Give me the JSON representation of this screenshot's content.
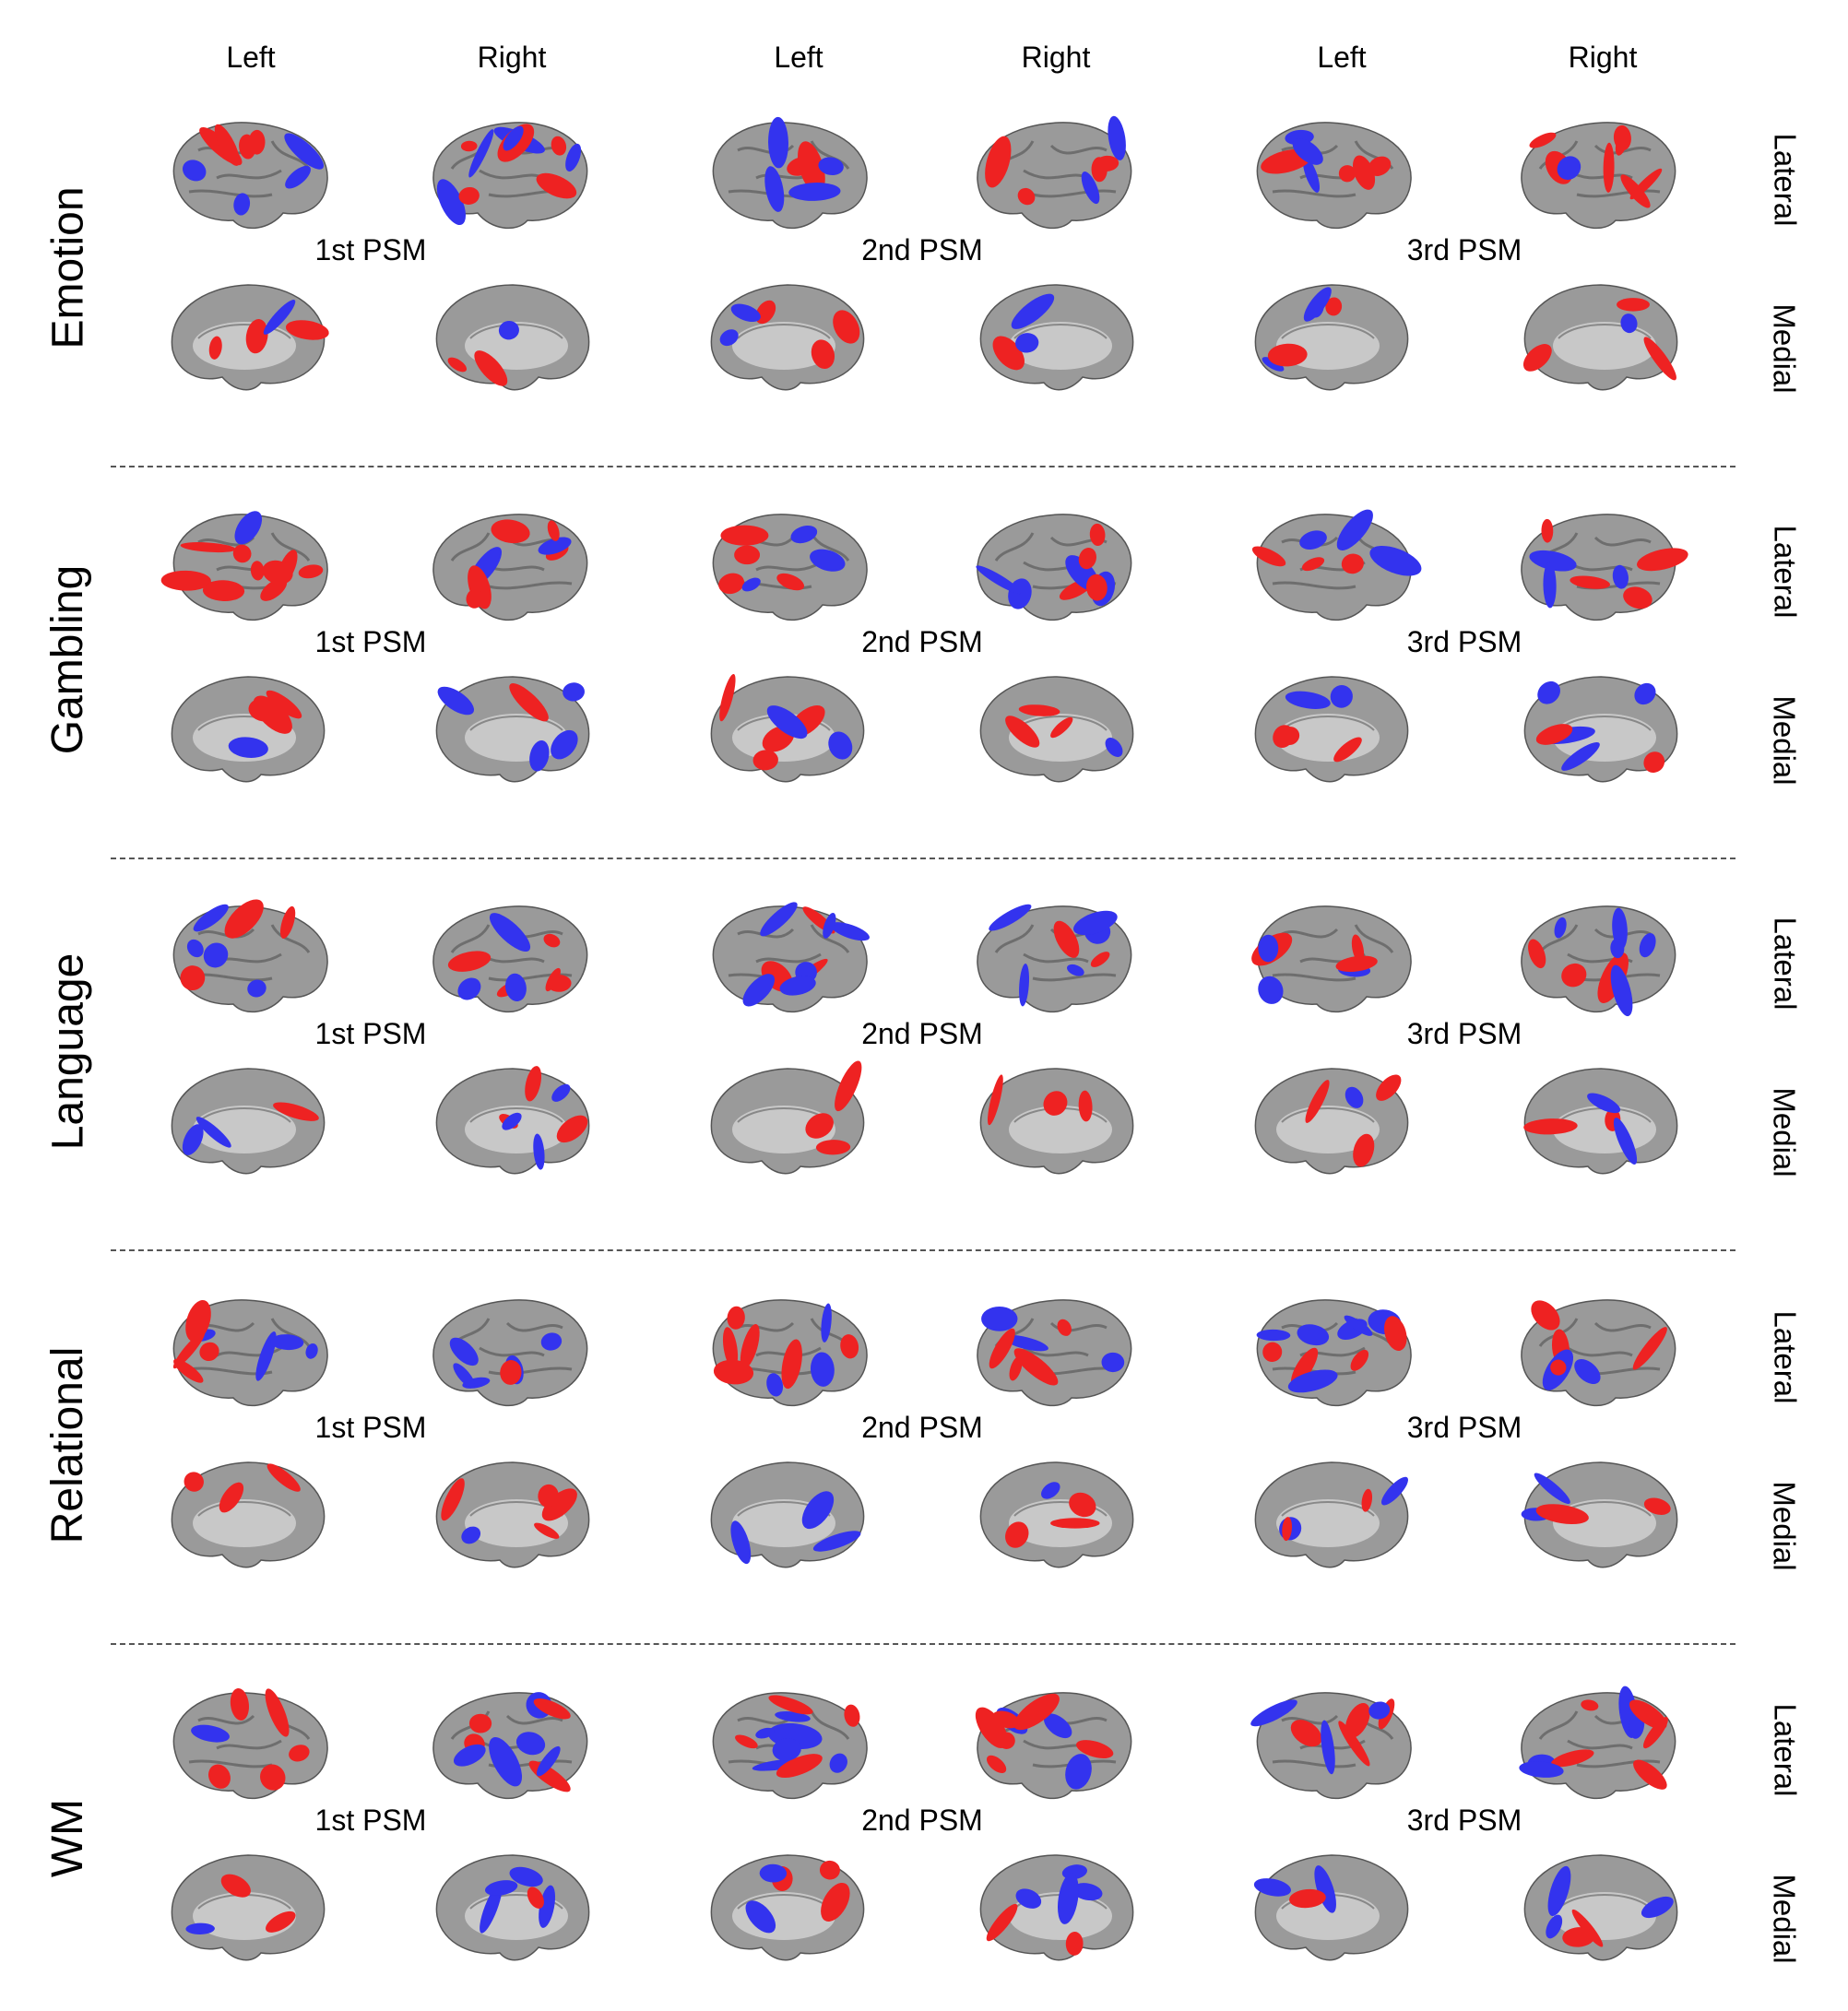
{
  "column_headers": [
    "Left",
    "Right",
    "Left",
    "Right",
    "Left",
    "Right"
  ],
  "component_labels": [
    "1st PSM",
    "2nd PSM",
    "3rd PSM"
  ],
  "view_labels": {
    "lateral": "Lateral",
    "medial": "Medial"
  },
  "tasks": [
    {
      "name": "Emotion"
    },
    {
      "name": "Gambling"
    },
    {
      "name": "Language"
    },
    {
      "name": "Relational"
    },
    {
      "name": "WM"
    }
  ],
  "colors": {
    "positive": "#ee2222",
    "negative": "#3333ee",
    "cortex": "#9a9a9a",
    "medial_wall": "#c8c8c8",
    "divider": "#555555"
  }
}
